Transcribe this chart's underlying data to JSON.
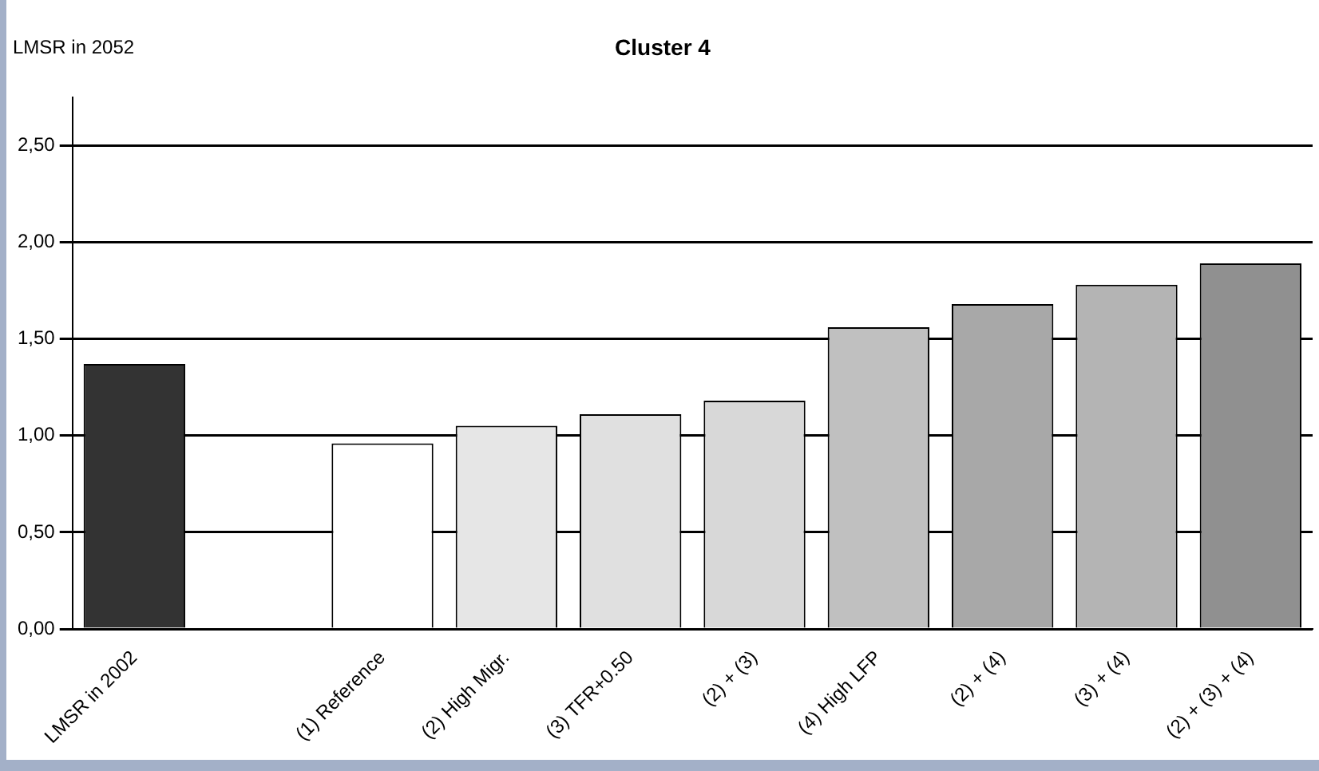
{
  "chart_data": {
    "type": "bar",
    "title": "Cluster 4",
    "ylabel": "LMSR in 2052",
    "categories": [
      "LMSR in 2002",
      null,
      "(1) Reference",
      "(2) High Migr.",
      "(3) TFR+0.50",
      "(2) + (3)",
      "(4) High LFP",
      "(2) + (4)",
      "(3) + (4)",
      "(2) + (3) + (4)"
    ],
    "values": [
      1.37,
      null,
      0.96,
      1.05,
      1.11,
      1.18,
      1.56,
      1.68,
      1.78,
      1.89
    ],
    "colors": [
      "#333333",
      "#ffffff",
      "#ffffff",
      "#e6e6e6",
      "#e0e0e0",
      "#d8d8d8",
      "#c0c0c0",
      "#a8a8a8",
      "#b4b4b4",
      "#909090"
    ],
    "ylim": [
      0,
      2.75
    ],
    "yticks": [
      {
        "value": 0,
        "label": "0,00"
      },
      {
        "value": 0.5,
        "label": "0,50"
      },
      {
        "value": 1,
        "label": "1,00"
      },
      {
        "value": 1.5,
        "label": "1,50"
      },
      {
        "value": 2,
        "label": "2,00"
      },
      {
        "value": 2.5,
        "label": "2,50"
      }
    ],
    "grid": "y",
    "legend": false
  }
}
